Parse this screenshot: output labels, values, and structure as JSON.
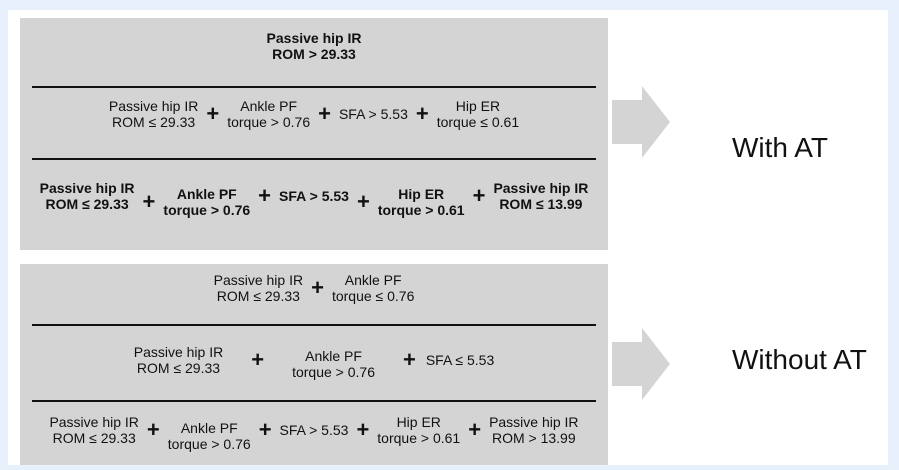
{
  "panels": [
    {
      "rule1": [
        {
          "line1": "Passive hip IR",
          "line2": "ROM > 29.33"
        }
      ],
      "rule2": [
        {
          "line1": "Passive hip IR",
          "line2": "ROM ≤ 29.33"
        },
        {
          "line1": "Ankle PF",
          "line2": "torque > 0.76"
        },
        {
          "line1": "SFA > 5.53",
          "line2": ""
        },
        {
          "line1": "Hip ER",
          "line2": "torque ≤ 0.61"
        }
      ],
      "rule3": [
        {
          "line1": "Passive hip IR",
          "line2": "ROM ≤ 29.33"
        },
        {
          "line1": "Ankle PF",
          "line2": "torque > 0.76"
        },
        {
          "line1": "SFA > 5.53",
          "line2": ""
        },
        {
          "line1": "Hip ER",
          "line2": "torque > 0.61"
        },
        {
          "line1": "Passive hip IR",
          "line2": "ROM ≤ 13.99"
        }
      ],
      "outcome": "With AT"
    },
    {
      "rule1": [
        {
          "line1": "Passive hip IR",
          "line2": "ROM ≤ 29.33"
        },
        {
          "line1": "Ankle PF",
          "line2": "torque ≤ 0.76"
        }
      ],
      "rule2": [
        {
          "line1": "Passive hip IR",
          "line2": "ROM ≤ 29.33"
        },
        {
          "line1": "Ankle PF",
          "line2": "torque > 0.76"
        },
        {
          "line1": "SFA ≤ 5.53",
          "line2": ""
        }
      ],
      "rule3": [
        {
          "line1": "Passive hip IR",
          "line2": "ROM ≤ 29.33"
        },
        {
          "line1": "Ankle PF",
          "line2": "torque > 0.76"
        },
        {
          "line1": "SFA > 5.53",
          "line2": ""
        },
        {
          "line1": "Hip ER",
          "line2": "torque > 0.61"
        },
        {
          "line1": "Passive hip IR",
          "line2": "ROM > 13.99"
        }
      ],
      "outcome": "Without AT"
    }
  ],
  "operator": "+",
  "colors": {
    "panel": "#d4d4d4",
    "arrow": "#d4d4d4",
    "background": "#e8f0fb"
  }
}
